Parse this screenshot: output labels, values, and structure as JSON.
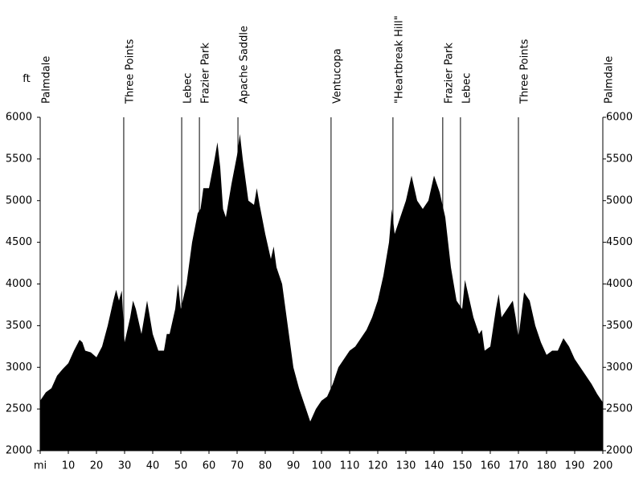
{
  "chart_data": {
    "type": "area",
    "color": "#000000",
    "y_unit": "ft",
    "x": [
      0,
      2,
      4,
      6,
      8,
      10,
      12,
      14,
      15,
      16,
      18,
      20,
      22,
      24,
      26,
      27,
      28,
      29,
      30,
      32,
      33,
      34,
      36,
      38,
      40,
      42,
      44,
      45,
      46,
      48,
      49,
      50,
      52,
      54,
      56,
      57,
      58,
      60,
      62,
      63,
      64,
      65,
      66,
      68,
      70,
      71,
      72,
      74,
      76,
      77,
      78,
      80,
      82,
      83,
      84,
      86,
      88,
      90,
      92,
      94,
      96,
      98,
      100,
      102,
      104,
      106,
      108,
      110,
      112,
      114,
      116,
      118,
      120,
      122,
      124,
      125,
      126,
      128,
      130,
      132,
      134,
      136,
      138,
      140,
      142,
      144,
      146,
      148,
      150,
      151,
      152,
      154,
      156,
      157,
      158,
      160,
      162,
      163,
      164,
      166,
      168,
      169,
      170,
      172,
      174,
      176,
      178,
      180,
      182,
      184,
      186,
      188,
      190,
      192,
      194,
      196,
      198,
      200
    ],
    "values": [
      2600,
      2700,
      2750,
      2900,
      2980,
      3050,
      3200,
      3330,
      3300,
      3200,
      3180,
      3120,
      3250,
      3500,
      3800,
      3930,
      3800,
      3920,
      3300,
      3600,
      3800,
      3700,
      3400,
      3800,
      3400,
      3200,
      3200,
      3400,
      3400,
      3700,
      4000,
      3700,
      4000,
      4500,
      4850,
      4900,
      5150,
      5150,
      5500,
      5700,
      5400,
      4900,
      4800,
      5200,
      5550,
      5800,
      5500,
      5000,
      4950,
      5150,
      4950,
      4600,
      4300,
      4450,
      4200,
      4000,
      3500,
      3000,
      2750,
      2550,
      2350,
      2500,
      2600,
      2650,
      2800,
      3000,
      3100,
      3200,
      3250,
      3350,
      3450,
      3600,
      3800,
      4100,
      4500,
      4900,
      4600,
      4800,
      5000,
      5300,
      5000,
      4900,
      5000,
      5300,
      5100,
      4800,
      4200,
      3800,
      3700,
      4050,
      3900,
      3600,
      3400,
      3450,
      3200,
      3250,
      3700,
      3880,
      3600,
      3700,
      3800,
      3600,
      3350,
      3900,
      3800,
      3500,
      3300,
      3150,
      3200,
      3200,
      3350,
      3250,
      3100,
      3000,
      2900,
      2800,
      2680,
      2580
    ],
    "xlim": [
      0,
      200
    ],
    "xticks": [
      {
        "value": 0,
        "label": "mi"
      },
      10,
      20,
      30,
      40,
      50,
      60,
      70,
      80,
      90,
      100,
      110,
      120,
      130,
      140,
      150,
      160,
      170,
      180,
      190,
      200
    ],
    "ylim": [
      2000,
      6000
    ],
    "yticks": [
      2000,
      2500,
      3000,
      3500,
      4000,
      4500,
      5000,
      5500,
      6000
    ],
    "annotations": [
      {
        "label": "Palmdale",
        "x": 0
      },
      {
        "label": "Three Points",
        "x": 29.7
      },
      {
        "label": "Lebec",
        "x": 50.3
      },
      {
        "label": "Frazier Park",
        "x": 56.6
      },
      {
        "label": "Apache Saddle",
        "x": 70.3
      },
      {
        "label": "Ventucopa",
        "x": 103.4
      },
      {
        "label": "\"Heartbreak Hill\"",
        "x": 125.4
      },
      {
        "label": "Frazier Park",
        "x": 143.1
      },
      {
        "label": "Lebec",
        "x": 149.4
      },
      {
        "label": "Three Points",
        "x": 170
      },
      {
        "label": "Palmdale",
        "x": 200
      }
    ]
  }
}
